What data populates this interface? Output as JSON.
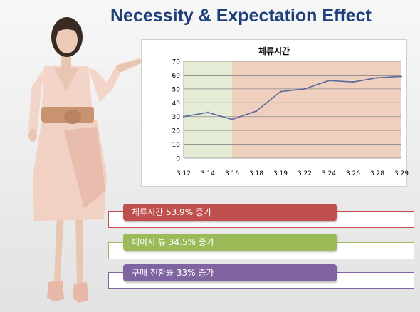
{
  "slide": {
    "title": "Necessity & Expectation Effect"
  },
  "chart_data": {
    "type": "line",
    "title": "체류시간",
    "categories": [
      "3.12",
      "3.14",
      "3.16",
      "3.18",
      "3.19",
      "3.22",
      "3.24",
      "3.26",
      "3.28",
      "3.29"
    ],
    "series": [
      {
        "values": [
          30,
          33,
          28,
          34,
          48,
          50,
          56,
          55,
          58,
          59
        ]
      }
    ],
    "ylim": [
      0,
      70
    ],
    "yticks": [
      0,
      10,
      20,
      30,
      40,
      50,
      60,
      70
    ],
    "grid": true,
    "shaded_regions": [
      {
        "from": "3.12",
        "to": "3.16",
        "color": "#e4ecd6"
      },
      {
        "from": "3.16",
        "to": "3.29",
        "color": "#efcfbd"
      }
    ],
    "line_color": "#5a6a9e"
  },
  "stats": [
    {
      "label": "체류시간 53.9% 증가",
      "color": "#c0504d"
    },
    {
      "label": "페이지 뷰 34.5% 증가",
      "color": "#9bbb59"
    },
    {
      "label": "구매 전환률 33% 증가",
      "color": "#8064a2"
    }
  ]
}
